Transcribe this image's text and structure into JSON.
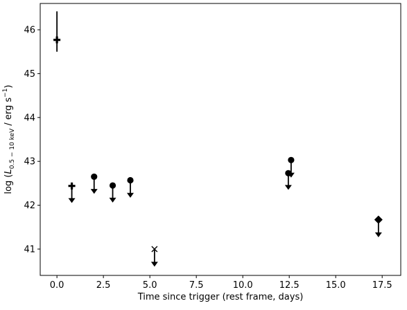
{
  "chart_data": {
    "type": "scatter",
    "title": "",
    "xlabel": "Time since trigger (rest frame, days)",
    "ylabel": {
      "prefix": "log (",
      "symbol": "L",
      "subscript": "0.5 − 10 keV",
      "unit": " / erg s",
      "unit_exp": "−1",
      "suffix": ")"
    },
    "xlim": [
      -0.9,
      18.5
    ],
    "ylim": [
      40.4,
      46.6
    ],
    "x_ticks": [
      {
        "value": 0.0,
        "label": "0.0"
      },
      {
        "value": 2.5,
        "label": "2.5"
      },
      {
        "value": 5.0,
        "label": "5.0"
      },
      {
        "value": 7.5,
        "label": "7.5"
      },
      {
        "value": 10.0,
        "label": "10.0"
      },
      {
        "value": 12.5,
        "label": "12.5"
      },
      {
        "value": 15.0,
        "label": "15.0"
      },
      {
        "value": 17.5,
        "label": "17.5"
      }
    ],
    "y_ticks": [
      {
        "value": 41,
        "label": "41"
      },
      {
        "value": 42,
        "label": "42"
      },
      {
        "value": 43,
        "label": "43"
      },
      {
        "value": 44,
        "label": "44"
      },
      {
        "value": 45,
        "label": "45"
      },
      {
        "value": 46,
        "label": "46"
      }
    ],
    "grid": false,
    "legend": "none",
    "color": "#000000",
    "points": [
      {
        "x": 0.0,
        "y": 45.77,
        "marker": "plus",
        "err_low": 45.5,
        "err_high": 46.42,
        "upper_limit": false
      },
      {
        "x": 0.8,
        "y": 42.44,
        "marker": "plus",
        "upper_limit": true,
        "limit_to": 42.05
      },
      {
        "x": 2.0,
        "y": 42.65,
        "marker": "circle",
        "upper_limit": true,
        "limit_to": 42.26
      },
      {
        "x": 3.0,
        "y": 42.45,
        "marker": "circle",
        "upper_limit": true,
        "limit_to": 42.06
      },
      {
        "x": 3.95,
        "y": 42.57,
        "marker": "circle",
        "upper_limit": true,
        "limit_to": 42.17
      },
      {
        "x": 5.25,
        "y": 41.0,
        "marker": "x",
        "upper_limit": true,
        "limit_to": 40.6
      },
      {
        "x": 12.45,
        "y": 42.73,
        "marker": "circle",
        "upper_limit": true,
        "limit_to": 42.35
      },
      {
        "x": 12.6,
        "y": 43.03,
        "marker": "circle",
        "upper_limit": true,
        "limit_to": 42.63
      },
      {
        "x": 17.3,
        "y": 41.67,
        "marker": "diamond",
        "upper_limit": true,
        "limit_to": 41.27
      }
    ]
  }
}
